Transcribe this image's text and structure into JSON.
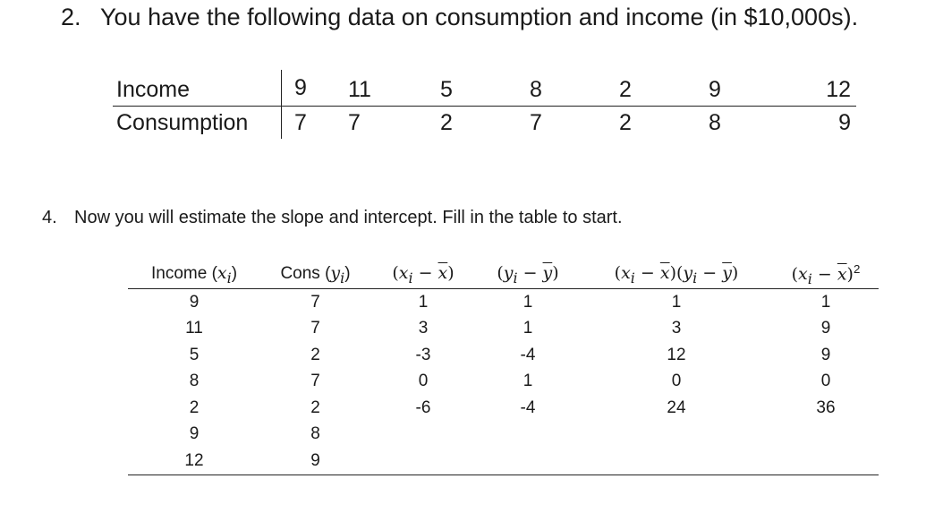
{
  "question2": {
    "number": "2.",
    "text": "You have the following data on consumption and income (in $10,000s)."
  },
  "table1": {
    "rows": [
      {
        "label": "Income",
        "values": [
          "9",
          "11",
          "5",
          "8",
          "2",
          "9",
          "12"
        ]
      },
      {
        "label": "Consumption",
        "values": [
          "7",
          "7",
          "2",
          "7",
          "2",
          "8",
          "9"
        ]
      }
    ]
  },
  "question4": {
    "number": "4.",
    "text": "Now you will estimate the slope and intercept. Fill in the table to start."
  },
  "table2": {
    "headers": [
      "Income (x_i)",
      "Cons (y_i)",
      "(x_i − x̄)",
      "(y_i − ȳ)",
      "(x_i − x̄)(y_i − ȳ)",
      "(x_i − x̄)^2"
    ],
    "rows": [
      [
        "9",
        "7",
        "1",
        "1",
        "1",
        "1"
      ],
      [
        "11",
        "7",
        "3",
        "1",
        "3",
        "9"
      ],
      [
        "5",
        "2",
        "-3",
        "-4",
        "12",
        "9"
      ],
      [
        "8",
        "7",
        "0",
        "1",
        "0",
        "0"
      ],
      [
        "2",
        "2",
        "-6",
        "-4",
        "24",
        "36"
      ],
      [
        "9",
        "8",
        "",
        "",
        "",
        ""
      ],
      [
        "12",
        "9",
        "",
        "",
        "",
        ""
      ]
    ]
  }
}
